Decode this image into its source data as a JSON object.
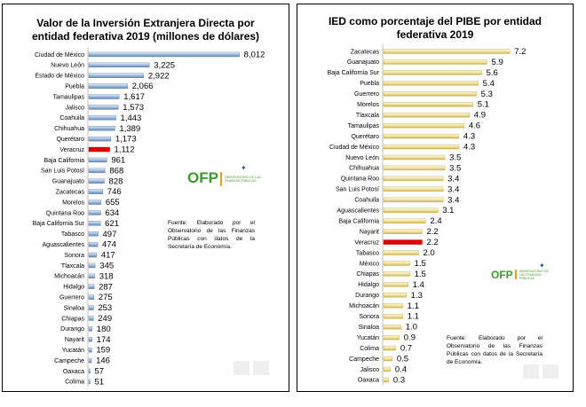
{
  "colors": {
    "bar_left": "#9bb6d8",
    "bar_left_dark": "#5d82b4",
    "bar_right": "#efe2a0",
    "bar_right_dark": "#c9ad4a",
    "highlight": "#e00000"
  },
  "logos": {
    "left": {
      "name": "ofp-logo",
      "text": "OFP",
      "subtitle": "OBSERVATORIO DE LAS FINANZAS PÚBLICAS"
    },
    "right": {
      "name": "ofp-logo",
      "text": "OFP",
      "subtitle": "OBSERVATORIO DE LAS FINANZAS PÚBLICAS"
    }
  },
  "chart_data": [
    {
      "type": "bar",
      "orientation": "horizontal",
      "title_lines": [
        "Valor de la Inversión Extranjera Directa por",
        "entidad federativa  2019 (millones de dólares)"
      ],
      "highlight": "Veracruz",
      "value_format": "thousands",
      "xlim": [
        0,
        8500
      ],
      "source": "Fuente: Elaborado por el Observatorio de las Finanzas Públicas con datos de la Secretaría de Economía.",
      "categories": [
        "Ciudad de México",
        "Nuevo León",
        "Estado de México",
        "Puebla",
        "Tamaulipas",
        "Jalisco",
        "Coahuila",
        "Chihuahua",
        "Querétaro",
        "Veracruz",
        "Baja California",
        "San Luis Potosí",
        "Guanajuato",
        "Zacatecas",
        "Morelos",
        "Quintana Roo",
        "Baja California Sur",
        "Tabasco",
        "Aguascalientes",
        "Sonora",
        "Tlaxcala",
        "Michoacán",
        "Hidalgo",
        "Guerrero",
        "Sinaloa",
        "Chiapas",
        "Durango",
        "Nayarit",
        "Yucatán",
        "Campeche",
        "Oaxaca",
        "Colima"
      ],
      "values": [
        8012,
        3225,
        2922,
        2066,
        1617,
        1573,
        1443,
        1389,
        1173,
        1112,
        961,
        868,
        828,
        746,
        655,
        634,
        621,
        497,
        474,
        417,
        345,
        318,
        287,
        275,
        253,
        249,
        180,
        174,
        159,
        146,
        57,
        51
      ],
      "labels": [
        "8,012",
        "3,225",
        "2,922",
        "2,066",
        "1,617",
        "1,573",
        "1,443",
        "1,389",
        "1,173",
        "1,112",
        "961",
        "868",
        "828",
        "746",
        "655",
        "634",
        "621",
        "497",
        "474",
        "417",
        "345",
        "318",
        "287",
        "275",
        "253",
        "249",
        "180",
        "174",
        "159",
        "146",
        "57",
        "51"
      ]
    },
    {
      "type": "bar",
      "orientation": "horizontal",
      "title_lines": [
        "IED como porcentaje del PIBE por entidad",
        "federativa 2019"
      ],
      "highlight": "Veracruz",
      "value_format": "one_decimal",
      "xlim": [
        0,
        8
      ],
      "source": "Fuente: Elaborado por el Observatorio de las Finanzas Públicas con datos de la Secretaría de Economía.",
      "categories": [
        "Zacatecas",
        "Guanajuato",
        "Baja California Sur",
        "Puebla",
        "Guerrero",
        "Morelos",
        "Tlaxcala",
        "Tamaulipas",
        "Querétaro",
        "Ciudad de México",
        "Nuevo León",
        "Chihuahua",
        "Quintana Roo",
        "San Luis Potosí",
        "Coahuila",
        "Aguascalientes",
        "Baja California",
        "Nayarit",
        "Veracruz",
        "Tabasco",
        "México",
        "Chiapas",
        "Hidalgo",
        "Durango",
        "Michoacán",
        "Sonora",
        "Sinaloa",
        "Yucatán",
        "Colima",
        "Campeche",
        "Jalisco",
        "Oaxaca"
      ],
      "values": [
        7.2,
        5.9,
        5.6,
        5.4,
        5.3,
        5.1,
        4.9,
        4.6,
        4.3,
        4.3,
        3.5,
        3.5,
        3.4,
        3.4,
        3.4,
        3.1,
        2.4,
        2.2,
        2.2,
        2.0,
        1.5,
        1.5,
        1.4,
        1.3,
        1.1,
        1.1,
        1.0,
        0.9,
        0.7,
        0.5,
        0.4,
        0.3
      ],
      "labels": [
        "7.2",
        "5.9",
        "5.6",
        "5.4",
        "5.3",
        "5.1",
        "4.9",
        "4.6",
        "4.3",
        "4.3",
        "3.5",
        "3.5",
        "3.4",
        "3.4",
        "3.4",
        "3.1",
        "2.4",
        "2.2",
        "2.2",
        "2.0",
        "1.5",
        "1.5",
        "1.4",
        "1.3",
        "1.1",
        "1.1",
        "1.0",
        "0.9",
        "0.7",
        "0.5",
        "0.4",
        "0.3"
      ]
    }
  ]
}
